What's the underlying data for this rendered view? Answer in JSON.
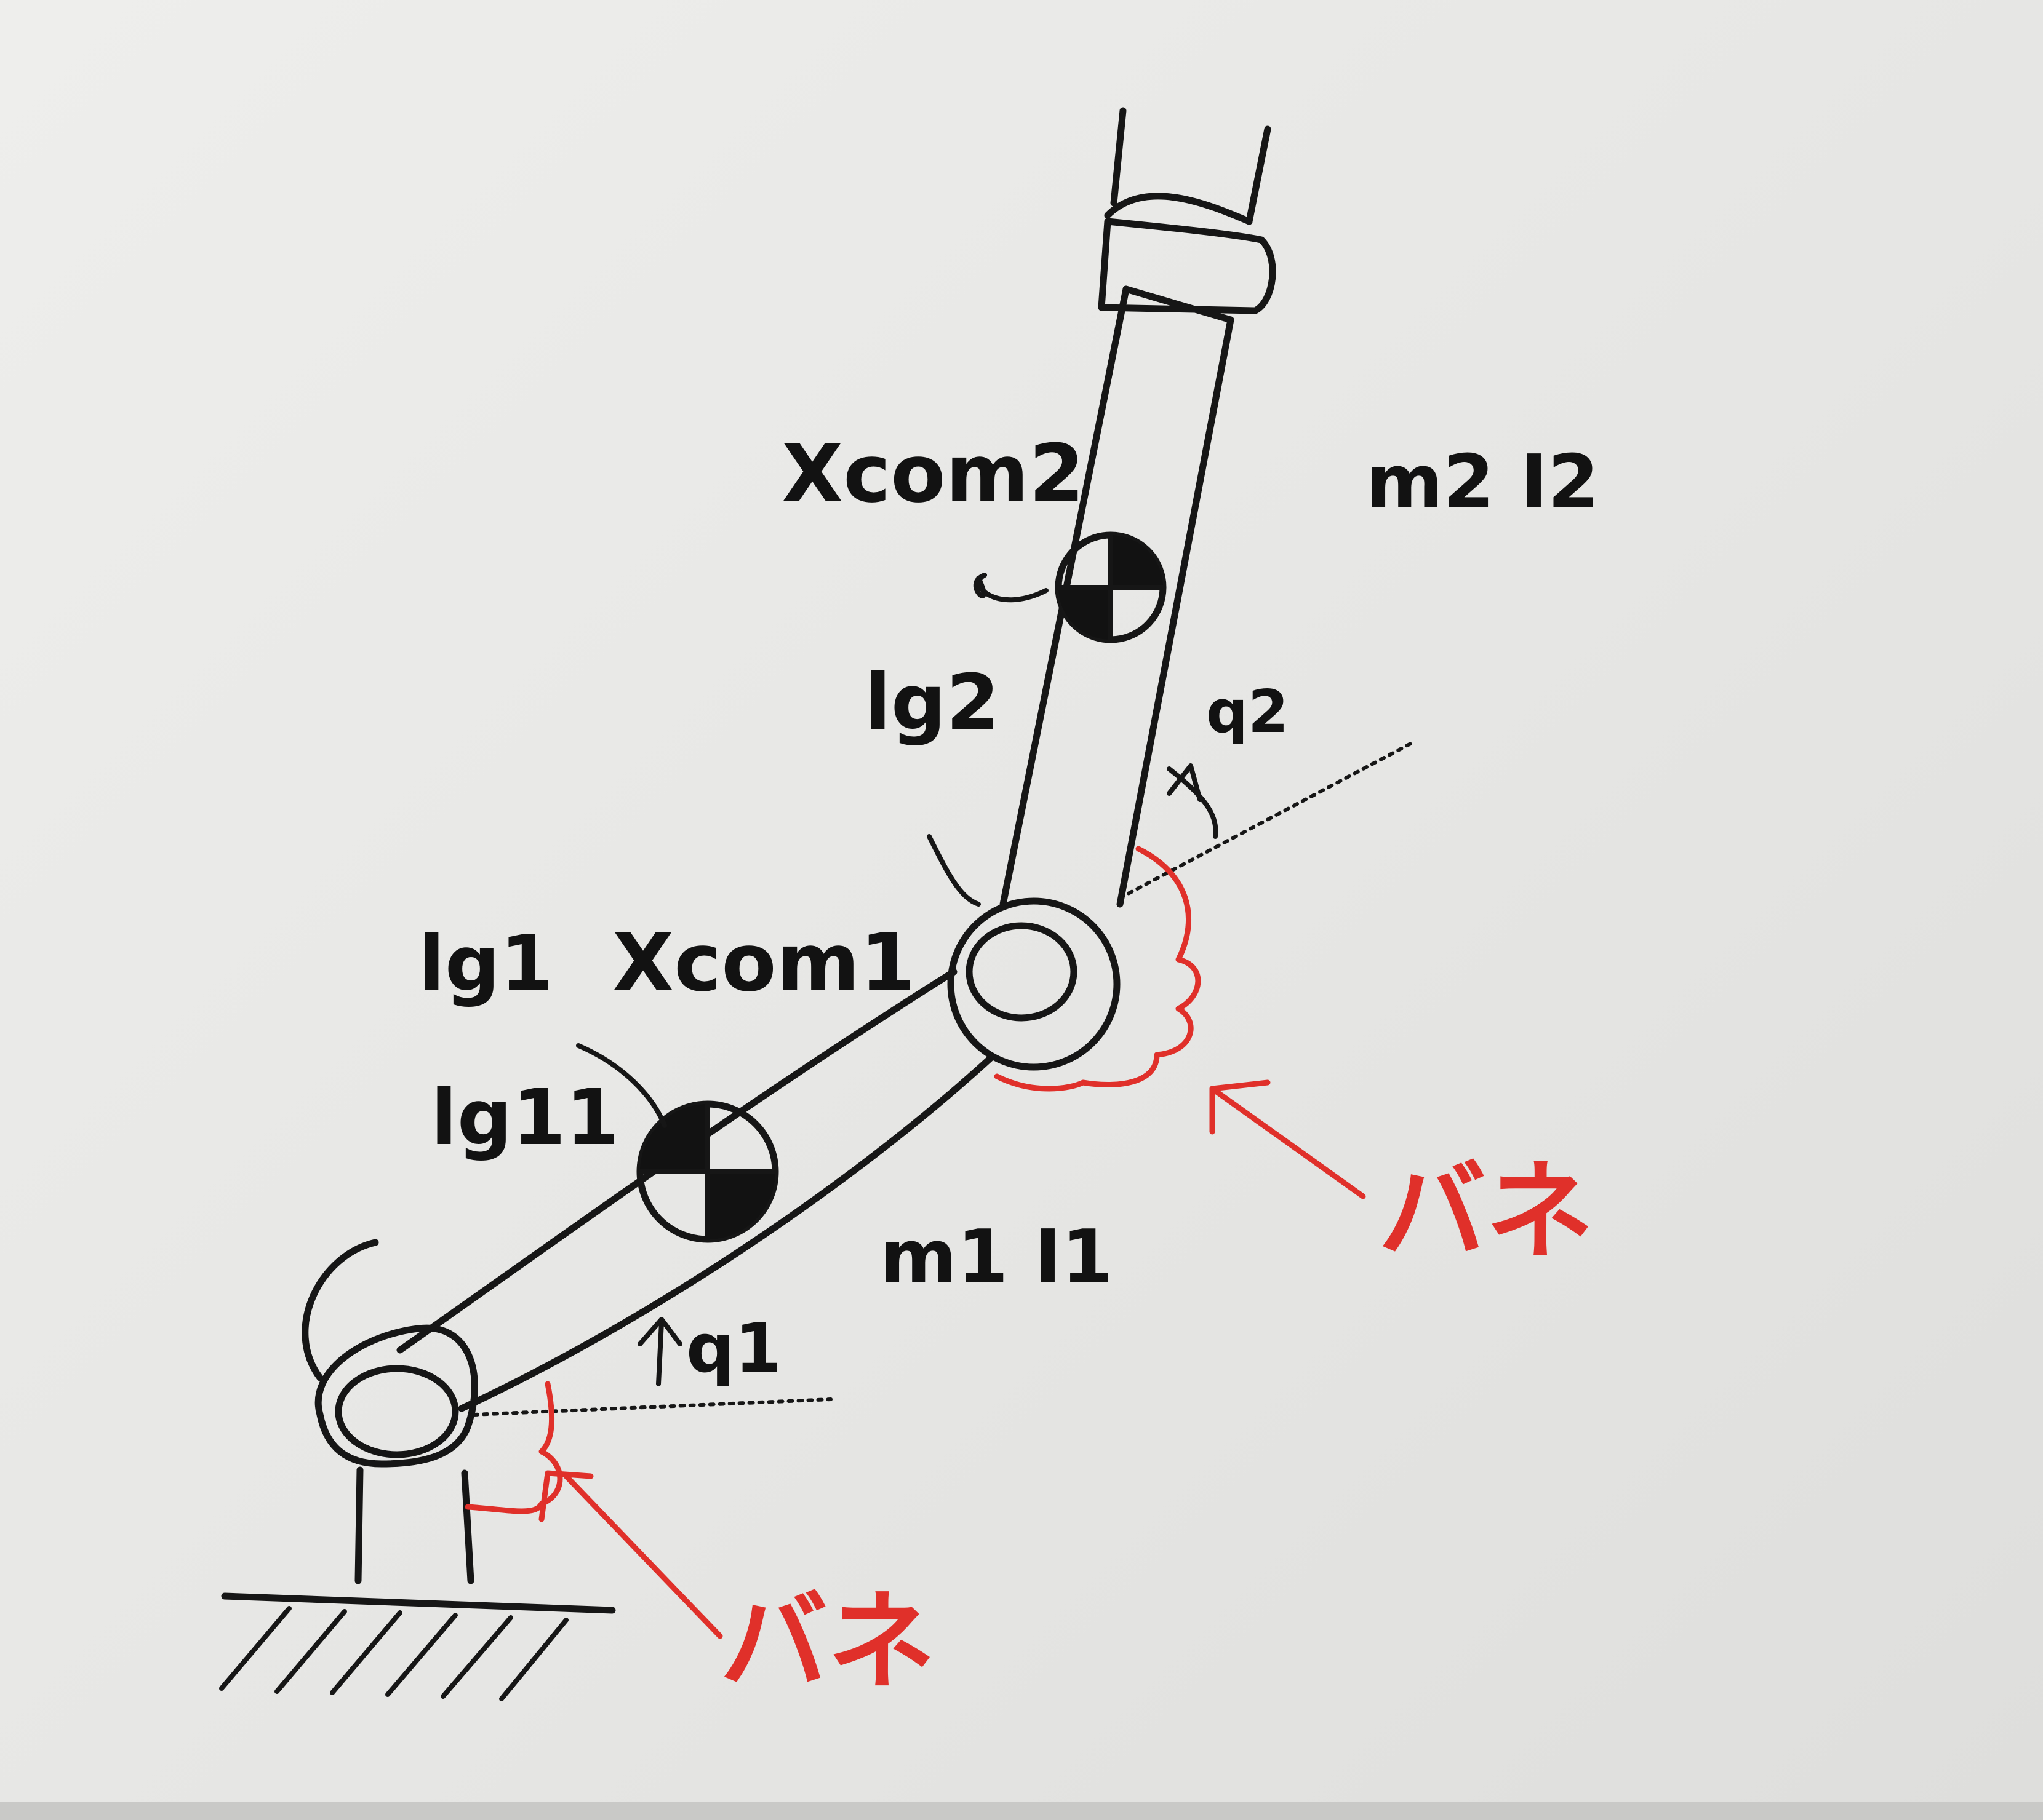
{
  "diagram": {
    "labels": {
      "xcom2": "Xcom2",
      "m2I2": "m2 I2",
      "lg2": "lg2",
      "q2": "q2",
      "lg1": "lg1",
      "xcom1": "Xcom1",
      "lg11": "lg11",
      "m1I1": "m1 I1",
      "q1": "q1",
      "spring_upper": "バネ",
      "spring_lower": "バネ"
    },
    "colors": {
      "ink": "#161616",
      "spring": "#e0302a",
      "paper": "#e8e8e6"
    },
    "icons": [
      "com-marker-icon",
      "joint-icon",
      "spring-icon",
      "ground-icon",
      "arrow-icon",
      "gripper-icon"
    ]
  }
}
